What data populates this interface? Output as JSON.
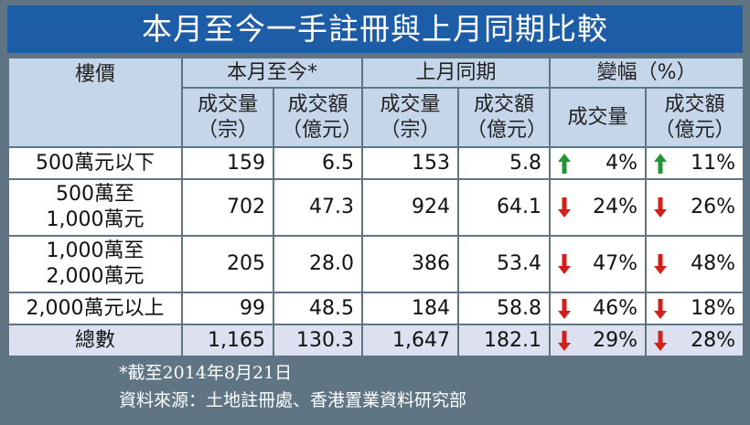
{
  "title": "本月至今一手註冊與上月同期比較",
  "header": {
    "label": "樓價",
    "groups": [
      "本月至今*",
      "上月同期",
      "變幅（%）"
    ],
    "columns": [
      [
        "成交量",
        "（宗）"
      ],
      [
        "成交額",
        "（億元）"
      ],
      [
        "成交量",
        "（宗）"
      ],
      [
        "成交額",
        "（億元）"
      ],
      [
        "成交量"
      ],
      [
        "成交額",
        "（億元）"
      ]
    ]
  },
  "rows": [
    {
      "label": [
        "500萬元以下"
      ],
      "cells": [
        "159",
        "6.5",
        "153",
        "5.8"
      ],
      "changes": [
        {
          "trend": "up",
          "text": "4%"
        },
        {
          "trend": "up",
          "text": "11%"
        }
      ]
    },
    {
      "label": [
        "500萬至",
        "1,000萬元"
      ],
      "cells": [
        "702",
        "47.3",
        "924",
        "64.1"
      ],
      "changes": [
        {
          "trend": "down",
          "text": "24%"
        },
        {
          "trend": "down",
          "text": "26%"
        }
      ]
    },
    {
      "label": [
        "1,000萬至",
        "2,000萬元"
      ],
      "cells": [
        "205",
        "28.0",
        "386",
        "53.4"
      ],
      "changes": [
        {
          "trend": "down",
          "text": "47%"
        },
        {
          "trend": "down",
          "text": "48%"
        }
      ]
    },
    {
      "label": [
        "2,000萬元以上"
      ],
      "cells": [
        "99",
        "48.5",
        "184",
        "58.8"
      ],
      "changes": [
        {
          "trend": "down",
          "text": "46%"
        },
        {
          "trend": "down",
          "text": "18%"
        }
      ]
    }
  ],
  "total": {
    "label": [
      "總數"
    ],
    "cells": [
      "1,165",
      "130.3",
      "1,647",
      "182.1"
    ],
    "changes": [
      {
        "trend": "down",
        "text": "29%"
      },
      {
        "trend": "down",
        "text": "28%"
      }
    ]
  },
  "footnotes": [
    "*截至2014年8月21日",
    "資料來源：土地註冊處、香港置業資料研究部"
  ]
}
